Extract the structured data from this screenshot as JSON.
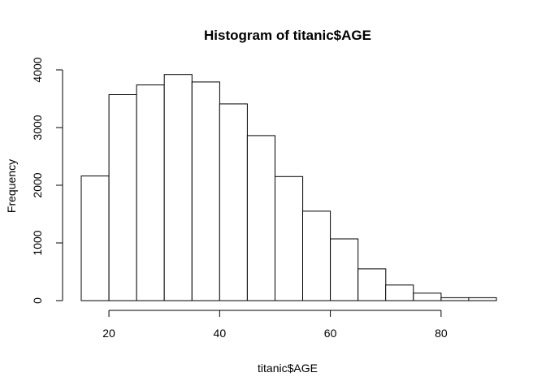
{
  "chart_data": {
    "type": "bar",
    "title": "Histogram of titanic$AGE",
    "xlabel": "titanic$AGE",
    "ylabel": "Frequency",
    "bin_edges": [
      15,
      20,
      25,
      30,
      35,
      40,
      45,
      50,
      55,
      60,
      65,
      70,
      75,
      80,
      85,
      90
    ],
    "values": [
      2160,
      3570,
      3740,
      3920,
      3790,
      3410,
      2860,
      2150,
      1550,
      1070,
      550,
      270,
      130,
      50,
      50
    ],
    "xlim": [
      15,
      90
    ],
    "ylim": [
      0,
      4000
    ],
    "x_ticks": [
      20,
      40,
      60,
      80
    ],
    "y_ticks": [
      0,
      1000,
      2000,
      3000,
      4000
    ],
    "grid": false,
    "legend": "none"
  }
}
